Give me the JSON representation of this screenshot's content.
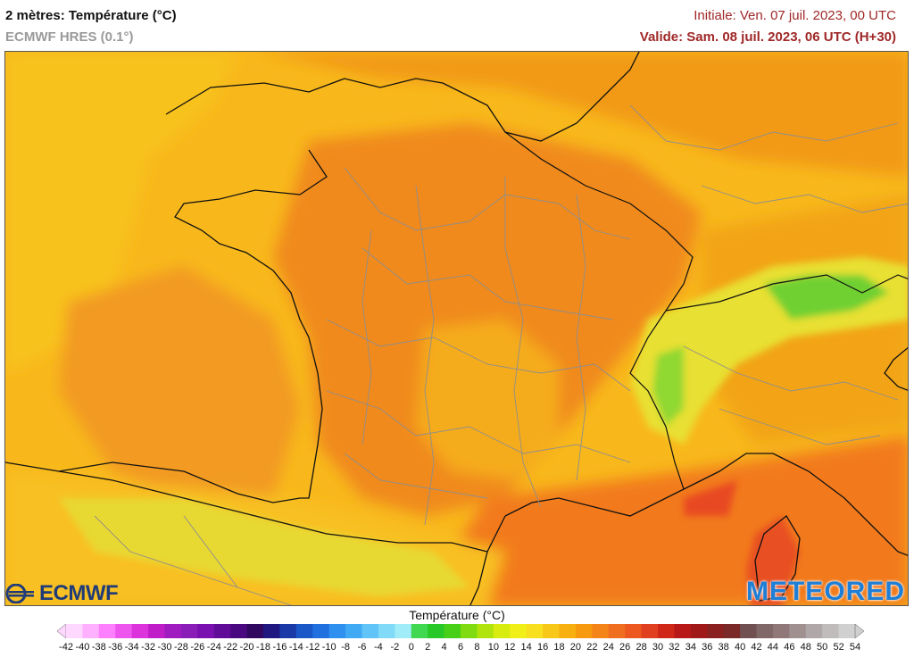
{
  "header": {
    "title": "2 mètres: Température (°C)",
    "subtitle": "ECMWF HRES (0.1°)",
    "initial": "Initiale: Ven. 07 juil. 2023, 00 UTC",
    "valid": "Valide: Sam. 08 juil. 2023, 06 UTC (H+30)"
  },
  "logos": {
    "left": "ECMWF",
    "right": "METEORED"
  },
  "legend": {
    "title": "Température (°C)",
    "ticks": [
      "-42",
      "-40",
      "-38",
      "-36",
      "-34",
      "-32",
      "-30",
      "-28",
      "-26",
      "-24",
      "-22",
      "-20",
      "-18",
      "-16",
      "-14",
      "-12",
      "-10",
      "-8",
      "-6",
      "-4",
      "-2",
      "0",
      "2",
      "4",
      "6",
      "8",
      "10",
      "12",
      "14",
      "16",
      "18",
      "20",
      "22",
      "24",
      "26",
      "28",
      "30",
      "32",
      "34",
      "36",
      "38",
      "40",
      "42",
      "44",
      "46",
      "48",
      "50",
      "52",
      "54"
    ],
    "colors": [
      "#ffd8ff",
      "#ffb0ff",
      "#ff80ff",
      "#ee55ee",
      "#dd33dd",
      "#c01cc8",
      "#a01cc0",
      "#8a1cb8",
      "#7a10b0",
      "#600c98",
      "#4a0880",
      "#300860",
      "#201880",
      "#1a3aa8",
      "#1a58c8",
      "#2070e0",
      "#3090f0",
      "#40aaf4",
      "#60c4f8",
      "#80daf8",
      "#a0ecf8",
      "#40d850",
      "#28c828",
      "#48d018",
      "#80dc10",
      "#b0e40c",
      "#d8ec10",
      "#f0f018",
      "#f8e020",
      "#f8c818",
      "#f8b010",
      "#f89a10",
      "#f48418",
      "#f06e20",
      "#ec5820",
      "#e04020",
      "#d02818",
      "#b81818",
      "#a01818",
      "#8a2020",
      "#7a2828",
      "#705050",
      "#806868",
      "#907878",
      "#a09090",
      "#b0a8a8",
      "#c0bcbc",
      "#d0d0d0"
    ]
  }
}
